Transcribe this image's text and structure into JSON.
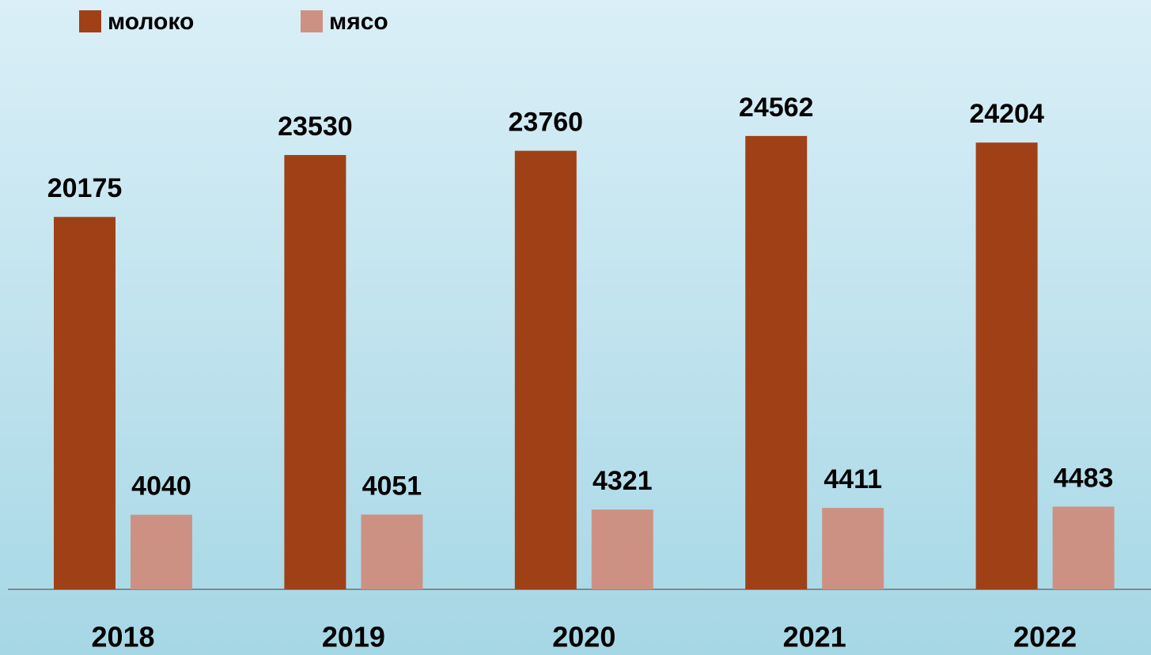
{
  "chart_data": {
    "type": "bar",
    "categories": [
      "2018",
      "2019",
      "2020",
      "2021",
      "2022"
    ],
    "series": [
      {
        "name": "молоко",
        "color": "#a04016",
        "values": [
          20175,
          23530,
          23760,
          24562,
          24204
        ]
      },
      {
        "name": "мясо",
        "color": "#cd9184",
        "values": [
          4040,
          4051,
          4321,
          4411,
          4483
        ]
      }
    ],
    "ylim": [
      0,
      30000
    ],
    "legend": "top"
  }
}
